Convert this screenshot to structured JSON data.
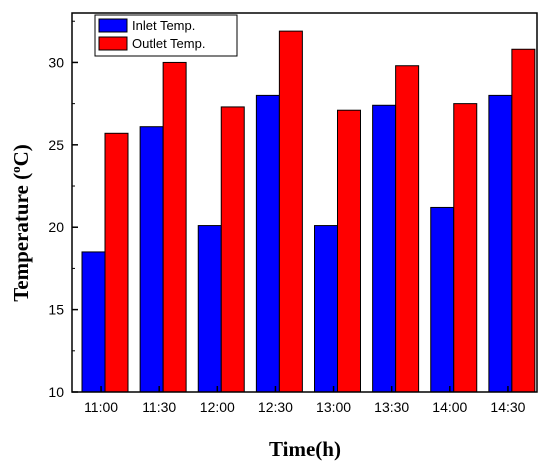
{
  "chart_data": {
    "type": "bar",
    "categories": [
      "11:00",
      "11:30",
      "12:00",
      "12:30",
      "13:00",
      "13:30",
      "14:00",
      "14:30"
    ],
    "series": [
      {
        "name": "Inlet Temp.",
        "color": "#0000ff",
        "values": [
          18.5,
          26.1,
          20.1,
          28.0,
          20.1,
          27.4,
          21.2,
          28.0
        ]
      },
      {
        "name": "Outlet Temp.",
        "color": "#ff0000",
        "values": [
          25.7,
          30.0,
          27.3,
          31.9,
          27.1,
          29.8,
          27.5,
          30.8
        ]
      }
    ],
    "xlabel": "Time(h)",
    "ylabel_main": "Temperature (",
    "ylabel_sup": "o",
    "ylabel_unit": "C)",
    "ylim": [
      10,
      33
    ],
    "yticks": [
      10,
      15,
      20,
      25,
      30
    ],
    "legend_position": "top-left",
    "grid": false
  }
}
